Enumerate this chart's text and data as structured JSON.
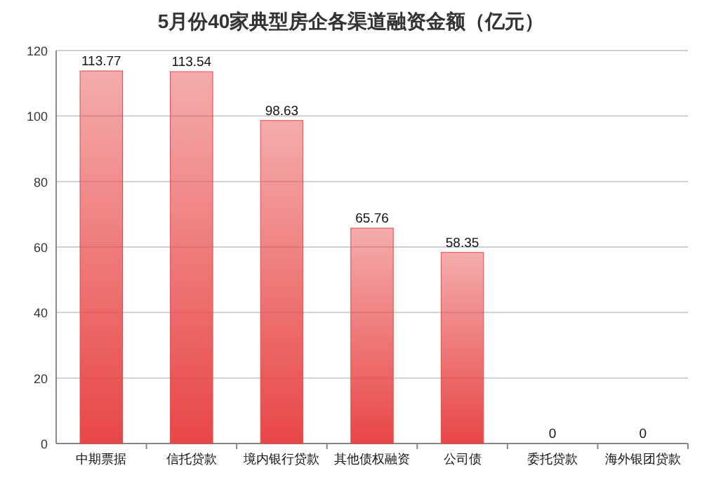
{
  "chart_data": {
    "type": "bar",
    "title": "5月份40家典型房企各渠道融资金额（亿元）",
    "categories": [
      "中期票据",
      "信托贷款",
      "境内银行贷款",
      "其他债权融资",
      "公司债",
      "委托贷款",
      "海外银团贷款"
    ],
    "values": [
      113.77,
      113.54,
      98.63,
      65.76,
      58.35,
      0,
      0
    ],
    "color": "#e84646",
    "ylim": [
      0,
      120
    ],
    "yticks": [
      0,
      20,
      40,
      60,
      80,
      100,
      120
    ],
    "grid": "y",
    "data_labels": true
  }
}
